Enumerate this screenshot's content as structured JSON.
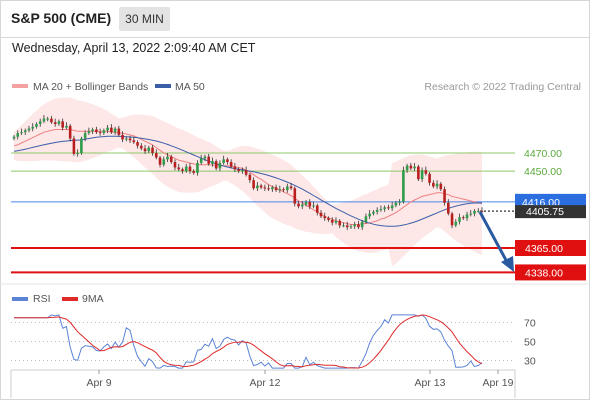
{
  "header": {
    "title": "S&P 500 (CME)",
    "timeframe": "30 MIN",
    "datetime": "Wednesday, April 13, 2022 2:09:40 AM CET"
  },
  "legend": {
    "bollinger_label": "MA 20 + Bollinger Bands",
    "ma50_label": "MA 50",
    "credit": "Research © 2022 Trading Central",
    "rsi_label": "RSI",
    "rsi_ma_label": "9MA"
  },
  "colors": {
    "bollinger": "#f5a0a0",
    "bollinger_fill": "#fde3e3",
    "ma20": "#f08080",
    "ma50": "#3a5fa8",
    "candle_up": "#2e9c4a",
    "candle_down": "#b82020",
    "green_level": "#8dc96a",
    "blue_level": "#4a86e8",
    "red_level": "#e01010",
    "arrow": "#2a5aa0",
    "rsi": "#5b84d6",
    "rsi_ma": "#e02a2a"
  },
  "chart_data": {
    "type": "line",
    "price_axis": {
      "ylim": [
        4328,
        4484
      ]
    },
    "resistance_levels": [
      {
        "value": 4470.0,
        "label": "4470.00",
        "kind": "green"
      },
      {
        "value": 4450.0,
        "label": "4450.00",
        "kind": "green"
      }
    ],
    "pivot": {
      "value": 4416.0,
      "label": "4416.00"
    },
    "current_price": {
      "value": 4405.75,
      "label": "4405.75"
    },
    "support_levels": [
      {
        "value": 4365.0,
        "label": "4365.00",
        "kind": "red"
      },
      {
        "value": 4338.0,
        "label": "4338.00",
        "kind": "red"
      }
    ],
    "x_ticks": [
      "Apr 9",
      "Apr 12",
      "Apr 13",
      "Apr 19"
    ],
    "price_series": {
      "close": [
        4488,
        4492,
        4493,
        4495,
        4497,
        4499,
        4502,
        4505,
        4508,
        4508,
        4504,
        4502,
        4505,
        4498,
        4500,
        4486,
        4469,
        4470,
        4486,
        4492,
        4494,
        4496,
        4493,
        4492,
        4495,
        4498,
        4493,
        4497,
        4490,
        4485,
        4486,
        4484,
        4482,
        4478,
        4475,
        4472,
        4476,
        4470,
        4465,
        4457,
        4463,
        4466,
        4460,
        4454,
        4452,
        4450,
        4455,
        4450,
        4448,
        4459,
        4464,
        4466,
        4458,
        4461,
        4453,
        4459,
        4463,
        4460,
        4455,
        4452,
        4450,
        4451,
        4446,
        4440,
        4431,
        4434,
        4432,
        4431,
        4430,
        4432,
        4429,
        4430,
        4429,
        4433,
        4431,
        4414,
        4411,
        4413,
        4416,
        4411,
        4412,
        4404,
        4400,
        4398,
        4396,
        4393,
        4395,
        4390,
        4390,
        4388,
        4389,
        4391,
        4388,
        4394,
        4400,
        4403,
        4405,
        4407,
        4408,
        4410,
        4409,
        4412,
        4415,
        4416,
        4451,
        4456,
        4453,
        4455,
        4441,
        4451,
        4447,
        4437,
        4433,
        4436,
        4430,
        4415,
        4403,
        4390,
        4394,
        4399,
        4398,
        4402,
        4403,
        4406,
        4406,
        4405
      ],
      "ma20": [
        4478,
        4479,
        4481,
        4483,
        4485,
        4487,
        4489,
        4491,
        4493,
        4494,
        4495,
        4496,
        4496,
        4496,
        4496,
        4496,
        4495,
        4494,
        4494,
        4494,
        4494,
        4494,
        4494,
        4494,
        4494,
        4494,
        4493,
        4493,
        4492,
        4492,
        4491,
        4490,
        4489,
        4487,
        4485,
        4483,
        4481,
        4479,
        4476,
        4473,
        4470,
        4468,
        4466,
        4464,
        4462,
        4461,
        4460,
        4459,
        4458,
        4457,
        4457,
        4457,
        4457,
        4457,
        4456,
        4456,
        4456,
        4456,
        4455,
        4455,
        4454,
        4453,
        4451,
        4449,
        4446,
        4443,
        4441,
        4438,
        4435,
        4433,
        4431,
        4429,
        4427,
        4425,
        4423,
        4420,
        4417,
        4415,
        4412,
        4410,
        4407,
        4405,
        4402,
        4400,
        4398,
        4397,
        4395,
        4394,
        4393,
        4392,
        4391,
        4391,
        4391,
        4392,
        4392,
        4393,
        4394,
        4395,
        4397,
        4398,
        4400,
        4402,
        4404,
        4407,
        4410,
        4413,
        4416,
        4418,
        4420,
        4422,
        4423,
        4424,
        4425,
        4426,
        4426,
        4425,
        4424,
        4422,
        4421,
        4420,
        4419,
        4418,
        4417,
        4416,
        4415,
        4414
      ]
    },
    "rsi_axis": {
      "ylim": [
        20,
        80
      ],
      "ticks": [
        70,
        50,
        30
      ],
      "tick_labels": [
        "70",
        "50",
        "30"
      ]
    }
  }
}
